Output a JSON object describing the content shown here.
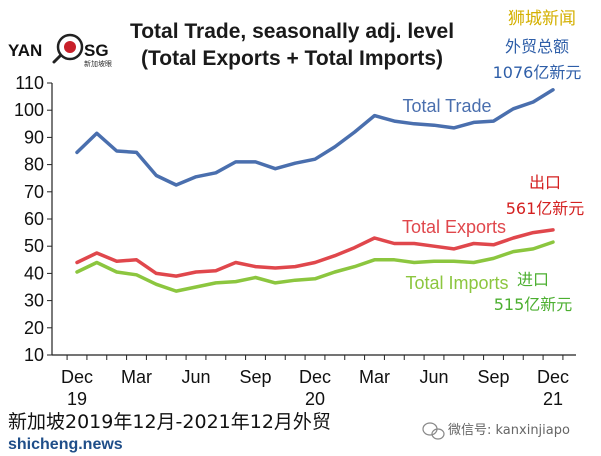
{
  "header": {
    "title_line1": "Total Trade, seasonally adj. level",
    "title_line2": "(Total Exports + Total Imports)",
    "brand": "狮城新闻"
  },
  "logo": {
    "left": "YAN",
    "right": "SG",
    "sub": "新加坡眼"
  },
  "notes": {
    "trade_line1": "外贸总额",
    "trade_line2": "1076亿新元",
    "exports_line1": "出口",
    "exports_line2": "561亿新元",
    "imports_line1": "进口",
    "imports_line2": "515亿新元"
  },
  "footer": {
    "caption": "新加坡2019年12月-2021年12月外贸",
    "watermark": "shicheng.news",
    "wechat": "微信号: kanxinjiapo"
  },
  "colors": {
    "trade": "#4a6fae",
    "exports": "#e0474c",
    "imports": "#8cc63f",
    "note_blue": "#2e5ea8",
    "note_red": "#d42020",
    "note_green": "#4caf30",
    "brand": "#d4b000"
  },
  "chart_data": {
    "type": "line",
    "title": "Total Trade, seasonally adj. level (Total Exports + Total Imports)",
    "x_tick_labels": [
      {
        "index": 0,
        "line1": "Dec",
        "line2": "19"
      },
      {
        "index": 3,
        "line1": "Mar",
        "line2": ""
      },
      {
        "index": 6,
        "line1": "Jun",
        "line2": ""
      },
      {
        "index": 9,
        "line1": "Sep",
        "line2": ""
      },
      {
        "index": 12,
        "line1": "Dec",
        "line2": "20"
      },
      {
        "index": 15,
        "line1": "Mar",
        "line2": ""
      },
      {
        "index": 18,
        "line1": "Jun",
        "line2": ""
      },
      {
        "index": 21,
        "line1": "Sep",
        "line2": ""
      },
      {
        "index": 24,
        "line1": "Dec",
        "line2": "21"
      }
    ],
    "y_ticks": [
      10,
      20,
      30,
      40,
      50,
      60,
      70,
      80,
      90,
      100,
      110
    ],
    "ylim": [
      10,
      110
    ],
    "grid": false,
    "series": [
      {
        "name": "Total Trade",
        "key": "trade",
        "values": [
          84.5,
          91.5,
          85,
          84.5,
          76,
          72.5,
          75.5,
          77,
          81,
          81,
          78.5,
          80.5,
          82,
          86.5,
          92,
          98,
          96,
          95,
          94.5,
          93.5,
          95.5,
          96,
          100.5,
          103,
          107.5
        ]
      },
      {
        "name": "Total Exports",
        "key": "exports",
        "values": [
          44,
          47.5,
          44.5,
          45,
          40,
          39,
          40.5,
          41,
          44,
          42.5,
          42,
          42.5,
          44,
          46.5,
          49.5,
          53,
          51,
          51,
          50,
          49,
          51,
          50.5,
          53,
          55,
          56
        ]
      },
      {
        "name": "Total Imports",
        "key": "imports",
        "values": [
          40.5,
          44,
          40.5,
          39.5,
          36,
          33.5,
          35,
          36.5,
          37,
          38.5,
          36.5,
          37.5,
          38,
          40.5,
          42.5,
          45,
          45,
          44,
          44.5,
          44.5,
          44,
          45.5,
          48,
          49,
          51.5
        ]
      }
    ]
  }
}
